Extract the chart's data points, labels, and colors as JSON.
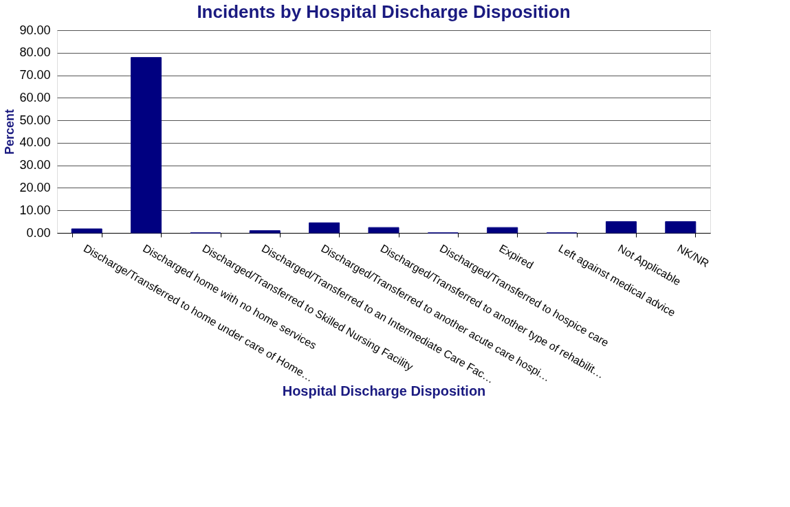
{
  "chart_data": {
    "type": "bar",
    "title": "Incidents by Hospital Discharge Disposition",
    "xlabel": "Hospital Discharge Disposition",
    "ylabel": "Percent",
    "categories": [
      "Discharge/Transferred to home under care of Home…",
      "Discharged home with no home services",
      "Discharged/Transferred to Skilled Nursing Facility",
      "Discharged/Transferred to an Intermediate Care Fac…",
      "Discharged/Transferred to another acute care hospi…",
      "Discharged/Transferred to another type of rehabilit…",
      "Discharged/Transferred to hospice care",
      "Expired",
      "Left against medical advice",
      "Not Applicable",
      "NK/NR"
    ],
    "values": [
      1.8,
      77.9,
      0,
      1.0,
      4.5,
      2.4,
      0,
      2.4,
      0,
      5.0,
      5.0
    ],
    "color": "#000080",
    "ylim": [
      0,
      90
    ],
    "yticks": [
      {
        "value": 0,
        "label": "0.00"
      },
      {
        "value": 10,
        "label": "10.00"
      },
      {
        "value": 20,
        "label": "20.00"
      },
      {
        "value": 30,
        "label": "30.00"
      },
      {
        "value": 40,
        "label": "40.00"
      },
      {
        "value": 50,
        "label": "50.00"
      },
      {
        "value": 60,
        "label": "60.00"
      },
      {
        "value": 70,
        "label": "70.00"
      },
      {
        "value": 80,
        "label": "80.00"
      },
      {
        "value": 90,
        "label": "90.00"
      }
    ],
    "grid": "y"
  }
}
